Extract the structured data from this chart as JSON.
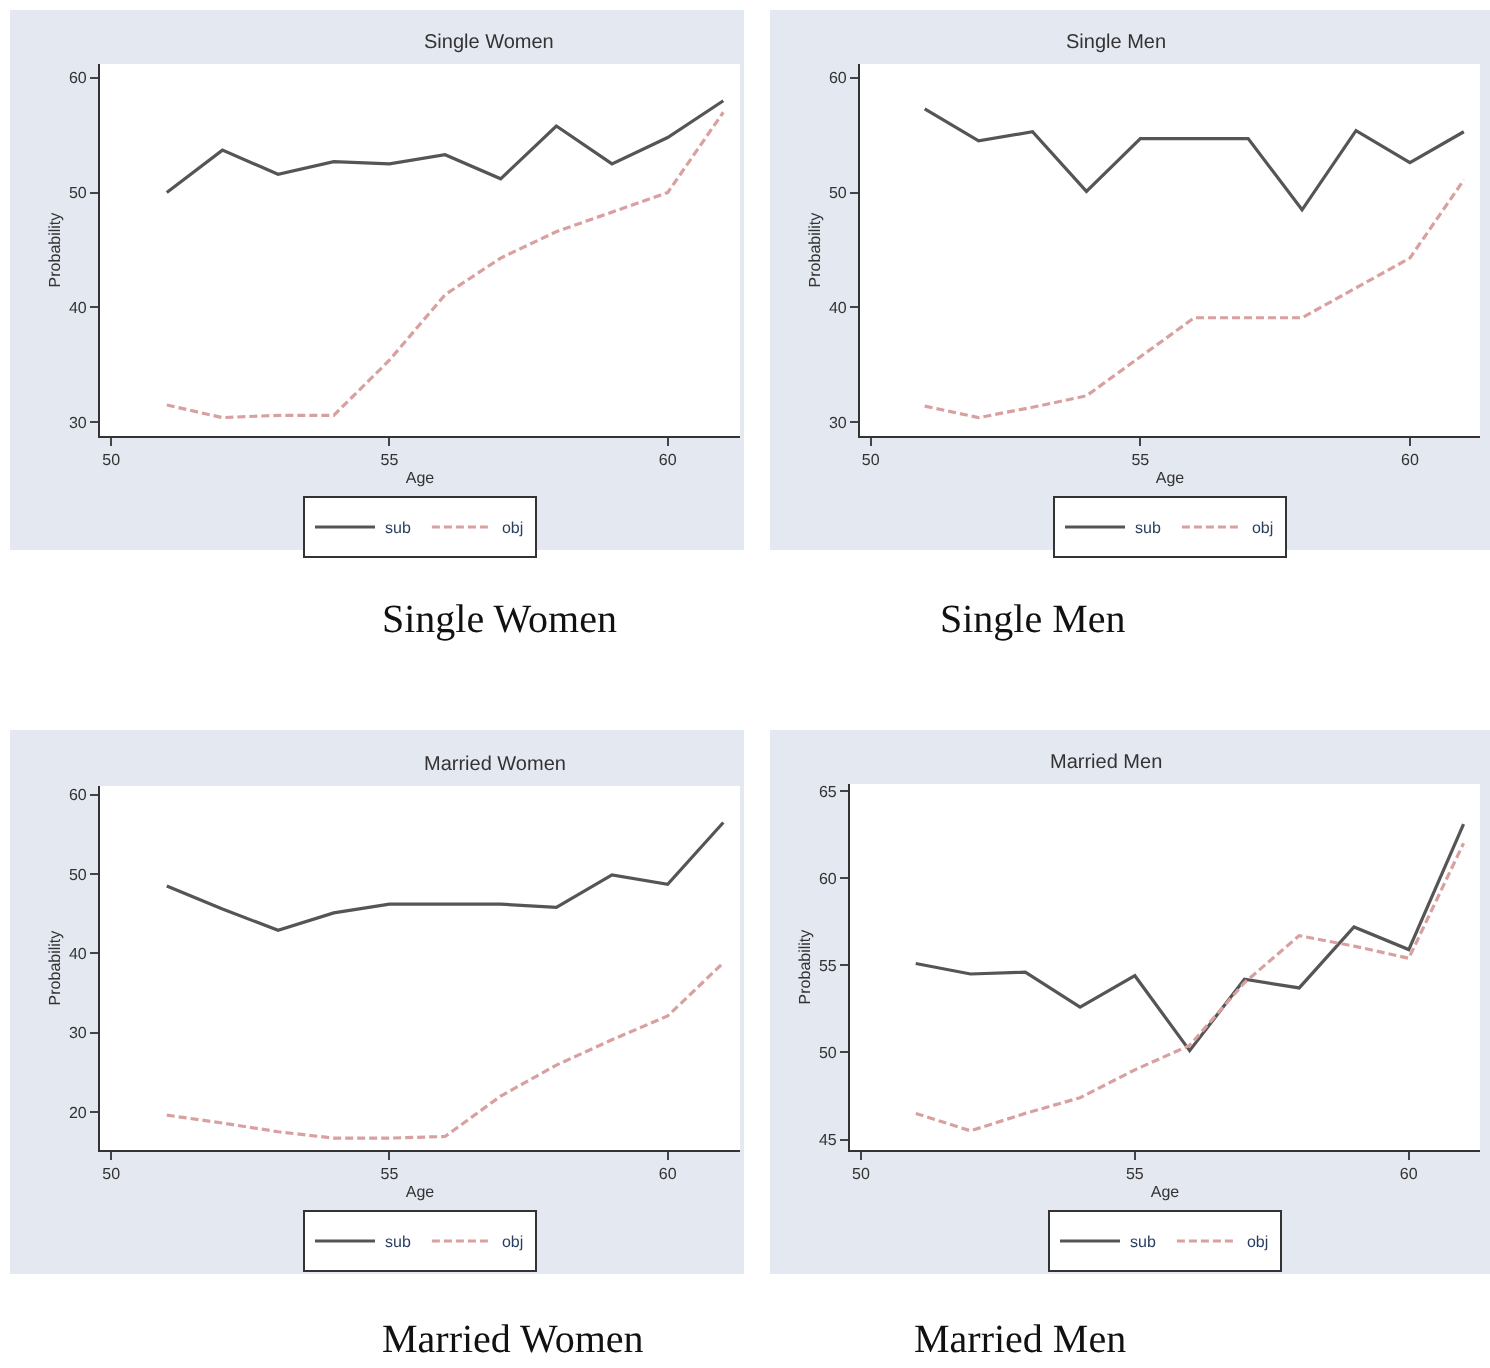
{
  "chart_data": [
    {
      "type": "line",
      "title": "Single Women",
      "xlabel": "Age",
      "ylabel": "Probability",
      "x": [
        51,
        52,
        53,
        54,
        55,
        56,
        57,
        58,
        59,
        60,
        61
      ],
      "xlim": [
        49.8,
        61.3
      ],
      "xticks": [
        50,
        55,
        60
      ],
      "ylim": [
        28.8,
        61.2
      ],
      "yticks": [
        30,
        40,
        50,
        60
      ],
      "legend": "bottom",
      "annotations": [
        "Single Women"
      ],
      "series": [
        {
          "name": "sub",
          "color": "#555555",
          "line_style": "solid",
          "values": [
            50.0,
            53.7,
            51.6,
            52.7,
            52.5,
            53.3,
            51.2,
            55.8,
            52.5,
            54.8,
            58.0
          ]
        },
        {
          "name": "obj",
          "color": "#d9a0a0",
          "line_style": "dashed",
          "values": [
            31.5,
            30.4,
            30.6,
            30.6,
            35.4,
            41.1,
            44.3,
            46.6,
            48.3,
            50.0,
            57.0
          ]
        }
      ]
    },
    {
      "type": "line",
      "title": "Single Men",
      "xlabel": "Age",
      "ylabel": "Probability",
      "x": [
        51,
        52,
        53,
        54,
        55,
        56,
        57,
        58,
        59,
        60,
        61
      ],
      "xlim": [
        49.8,
        61.3
      ],
      "xticks": [
        50,
        55,
        60
      ],
      "ylim": [
        28.8,
        61.2
      ],
      "yticks": [
        30,
        40,
        50,
        60
      ],
      "legend": "bottom",
      "annotations": [
        "Single Men"
      ],
      "series": [
        {
          "name": "sub",
          "color": "#555555",
          "line_style": "solid",
          "values": [
            57.3,
            54.5,
            55.3,
            50.1,
            54.7,
            54.7,
            54.7,
            48.5,
            55.4,
            52.6,
            55.3
          ]
        },
        {
          "name": "obj",
          "color": "#d9a0a0",
          "line_style": "dashed",
          "values": [
            31.4,
            30.4,
            31.3,
            32.3,
            35.7,
            39.1,
            39.1,
            39.1,
            41.7,
            44.3,
            51.1
          ]
        }
      ]
    },
    {
      "type": "line",
      "title": "Married Women",
      "xlabel": "Age",
      "ylabel": "Probability",
      "x": [
        51,
        52,
        53,
        54,
        55,
        56,
        57,
        58,
        59,
        60,
        61
      ],
      "xlim": [
        49.8,
        61.3
      ],
      "xticks": [
        50,
        55,
        60
      ],
      "ylim": [
        15.2,
        61.1
      ],
      "yticks": [
        20,
        30,
        40,
        50,
        60
      ],
      "legend": "bottom",
      "annotations": [
        "Married Women"
      ],
      "series": [
        {
          "name": "sub",
          "color": "#555555",
          "line_style": "solid",
          "values": [
            48.5,
            45.6,
            42.9,
            45.1,
            46.2,
            46.2,
            46.2,
            45.8,
            49.9,
            48.7,
            56.5
          ]
        },
        {
          "name": "obj",
          "color": "#d9a0a0",
          "line_style": "dashed",
          "values": [
            19.6,
            18.6,
            17.5,
            16.7,
            16.7,
            16.9,
            22.0,
            25.9,
            29.1,
            32.1,
            38.8
          ]
        }
      ]
    },
    {
      "type": "line",
      "title": "Married Men",
      "xlabel": "Age",
      "ylabel": "Probability",
      "x": [
        51,
        52,
        53,
        54,
        55,
        56,
        57,
        58,
        59,
        60,
        61
      ],
      "xlim": [
        49.8,
        61.3
      ],
      "xticks": [
        50,
        55,
        60
      ],
      "ylim": [
        44.4,
        65.4
      ],
      "yticks": [
        45,
        50,
        55,
        60,
        65
      ],
      "legend": "bottom",
      "annotations": [
        "Married Men"
      ],
      "series": [
        {
          "name": "sub",
          "color": "#555555",
          "line_style": "solid",
          "values": [
            55.1,
            54.5,
            54.6,
            52.6,
            54.4,
            50.1,
            54.2,
            53.7,
            57.2,
            55.9,
            63.1
          ]
        },
        {
          "name": "obj",
          "color": "#d9a0a0",
          "line_style": "dashed",
          "values": [
            46.5,
            45.5,
            46.5,
            47.4,
            49.0,
            50.4,
            54.0,
            56.7,
            56.1,
            55.4,
            62.0
          ]
        }
      ]
    }
  ]
}
